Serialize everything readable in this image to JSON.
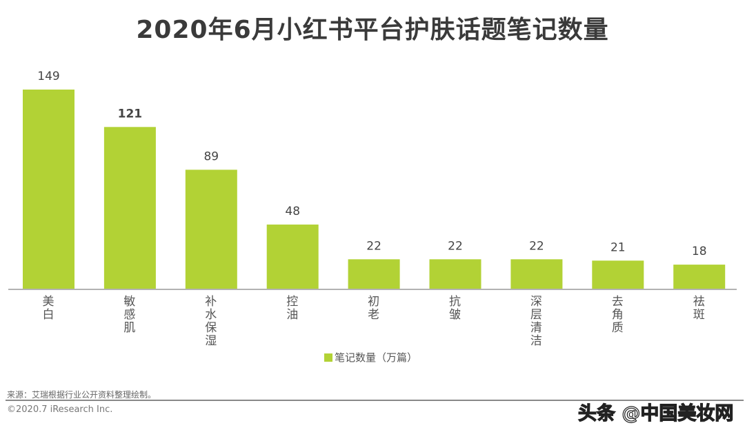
{
  "chart_data": {
    "type": "bar",
    "title": "2020年6月小红书平台护肤话题笔记数量",
    "categories": [
      "美白",
      "敏感肌",
      "补水保湿",
      "控油",
      "初老",
      "抗皱",
      "深层清洁",
      "去角质",
      "祛斑"
    ],
    "series": [
      {
        "name": "笔记数量（万篇）",
        "values": [
          149,
          121,
          89,
          48,
          22,
          22,
          22,
          21,
          18
        ],
        "color": "#b2d235"
      }
    ],
    "ylim": [
      0,
      160
    ],
    "grid": false,
    "legend": "bottom",
    "xlabel": "",
    "ylabel": ""
  },
  "footer": {
    "source": "来源：艾瑞根据行业公开资料整理绘制。",
    "copyright": "©2020.7 iResearch Inc.",
    "watermark": "头条 @中国美妆网"
  }
}
